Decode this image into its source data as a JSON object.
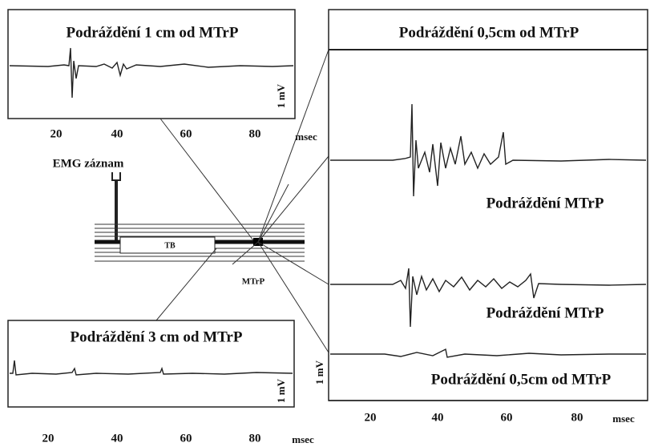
{
  "top_left": {
    "title": "Podráždění 1 cm od MTrP",
    "scale": "1 mV",
    "ticks": [
      20,
      40,
      60,
      80
    ],
    "unit": "msec"
  },
  "middle": {
    "electrode": "EMG záznam",
    "band": "TB",
    "point": "MTrP"
  },
  "bottom_left": {
    "title": "Podráždění 3 cm od MTrP",
    "scale": "1 mV",
    "ticks": [
      20,
      40,
      60,
      80
    ],
    "unit": "msec"
  },
  "right": {
    "title": "Podráždění 0,5cm od MTrP",
    "traces": [
      "Podráždění MTrP",
      "Podráždění MTrP",
      "Podráždění 0,5cm od MTrP"
    ],
    "scale": "1 mV",
    "ticks": [
      20,
      40,
      60,
      80
    ],
    "unit": "msec"
  }
}
